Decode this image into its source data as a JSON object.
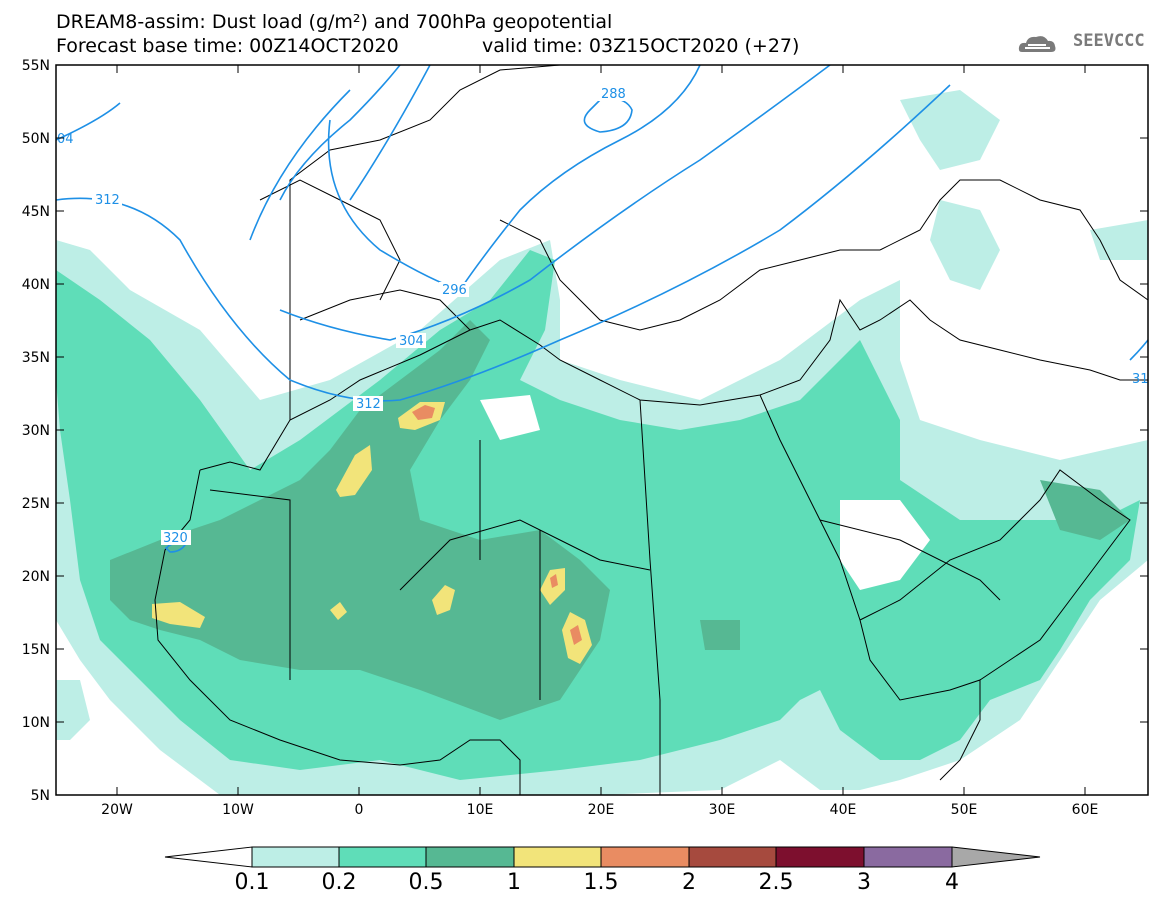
{
  "title": {
    "line1": "DREAM8-assim: Dust load (g/m²) and 700hPa geopotential",
    "line2_left": "Forecast base time: 00Z14OCT2020",
    "line2_right": "valid time: 03Z15OCT2020 (+27)"
  },
  "logo": {
    "text": "SEEVCCC",
    "icon": "cloud-icon"
  },
  "axes": {
    "lat_labels": [
      "55N",
      "50N",
      "45N",
      "40N",
      "35N",
      "30N",
      "25N",
      "20N",
      "15N",
      "10N",
      "5N"
    ],
    "lon_labels": [
      "20W",
      "10W",
      "0",
      "10E",
      "20E",
      "30E",
      "40E",
      "50E",
      "60E"
    ]
  },
  "contour_labels": [
    "288",
    "296",
    "304",
    "312",
    "312",
    "320",
    "04",
    "31"
  ],
  "colorbar": {
    "labels": [
      "0.1",
      "0.2",
      "0.5",
      "1",
      "1.5",
      "2",
      "2.5",
      "3",
      "4"
    ],
    "colors": [
      "#ffffff",
      "#bdeee6",
      "#5fddb8",
      "#56b893",
      "#f2e47a",
      "#e98c62",
      "#a64a3e",
      "#7d0f2e",
      "#8a6aa0",
      "#a8a8a8"
    ]
  },
  "legend_colors": {
    "land_outline": "#000000",
    "contour_line": "#1e90e6"
  }
}
